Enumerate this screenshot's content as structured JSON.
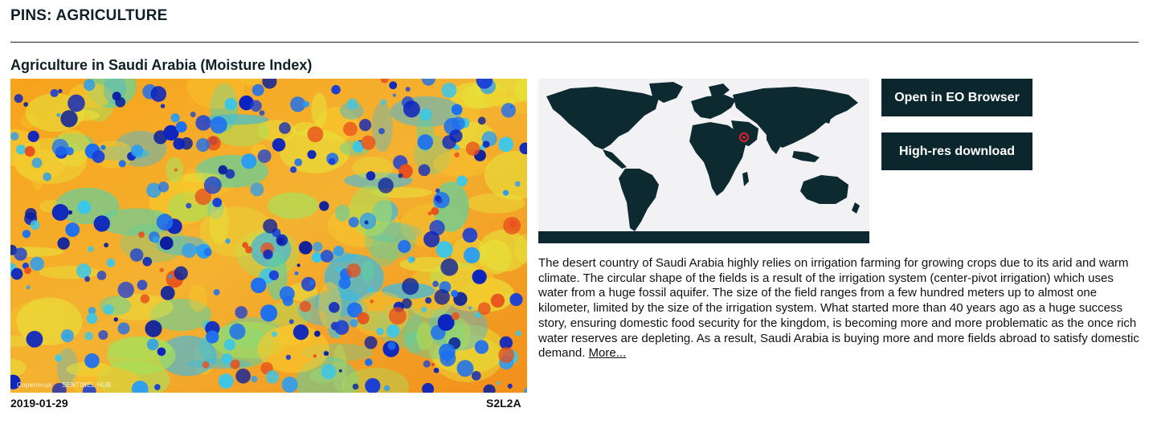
{
  "section": {
    "title": "PINS: AGRICULTURE"
  },
  "pin": {
    "title": "Agriculture in Saudi Arabia (Moisture Index)",
    "date": "2019-01-29",
    "source": "S2L2A",
    "image_credits": [
      "Copernicus",
      "SENTINEL HUB"
    ],
    "description": "The desert country of Saudi Arabia highly relies on irrigation farming for growing crops due to its arid and warm climate. The circular shape of the fields is a result of the irrigation system (center-pivot irrigation) which uses water from a huge fossil aquifer. The size of the field ranges from a few hundred meters up to almost one kilometer, limited by the size of the irrigation system. What started more than 40 years ago as a huge success story, ensuring domestic food security for the kingdom, is becoming more and more problematic as the once rich water reserves are depleting. As a result, Saudi Arabia is buying more and more fields abroad to satisfy domestic demand.",
    "more_link": "More..."
  },
  "buttons": {
    "open_eo": "Open in EO Browser",
    "download": "High-res download"
  },
  "colors": {
    "accent_dark": "#0b262d",
    "dry": "#f6a21d",
    "moist": "#1a3fd6",
    "marker": "#e0202a"
  },
  "icons": {
    "location_marker": "map-pin-icon"
  }
}
